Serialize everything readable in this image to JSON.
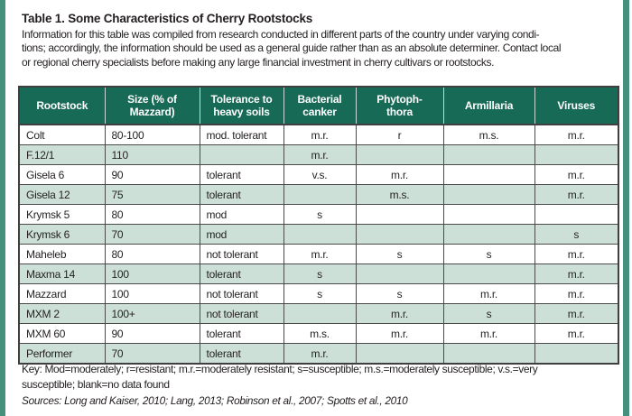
{
  "frame": {
    "border_color": "#45917e"
  },
  "title": "Table 1. Some Characteristics of Cherry Rootstocks",
  "intro": {
    "lines": [
      "Information for this table was compiled from research conducted in different parts of the country under varying condi-",
      "tions; accordingly, the information should be used as a general guide rather than as an absolute determiner. Contact local",
      "or regional cherry specialists before making any large financial investment in cherry cultivars or rootstocks."
    ]
  },
  "table": {
    "header_bg": "#166a56",
    "alt_row_bg": "#cde0d8",
    "headers": [
      [
        "Rootstock"
      ],
      [
        "Size (% of",
        "Mazzard)"
      ],
      [
        "Tolerance to",
        "heavy soils"
      ],
      [
        "Bacterial",
        "canker"
      ],
      [
        "Phytoph-",
        "thora"
      ],
      [
        "Armillaria"
      ],
      [
        "Viruses"
      ]
    ],
    "rows": [
      [
        "Colt",
        "80-100",
        "mod. tolerant",
        "m.r.",
        "r",
        "m.s.",
        "m.r."
      ],
      [
        "F.12/1",
        "110",
        "",
        "m.r.",
        "",
        "",
        ""
      ],
      [
        "Gisela 6",
        "90",
        "tolerant",
        "v.s.",
        "m.r.",
        "",
        "m.r."
      ],
      [
        "Gisela 12",
        "75",
        "tolerant",
        "",
        "m.s.",
        "",
        "m.r."
      ],
      [
        "Krymsk 5",
        "80",
        "mod",
        "s",
        "",
        "",
        ""
      ],
      [
        "Krymsk 6",
        "70",
        "mod",
        "",
        "",
        "",
        "s"
      ],
      [
        "Maheleb",
        "80",
        "not tolerant",
        "m.r.",
        "s",
        "s",
        "m.r."
      ],
      [
        "Maxma 14",
        "100",
        "tolerant",
        "s",
        "",
        "",
        "m.r."
      ],
      [
        "Mazzard",
        "100",
        "not tolerant",
        "s",
        "s",
        "m.r.",
        "m.r."
      ],
      [
        "MXM 2",
        "100+",
        "not tolerant",
        "",
        "m.r.",
        "s",
        "m.r."
      ],
      [
        "MXM 60",
        "90",
        "tolerant",
        "m.s.",
        "m.r.",
        "m.r.",
        "m.r."
      ],
      [
        "Performer",
        "70",
        "tolerant",
        "m.r.",
        "",
        "",
        ""
      ]
    ]
  },
  "footer": {
    "key_lines": [
      "Key: Mod=moderately; r=resistant; m.r.=moderately resistant; s=susceptible; m.s.=moderately susceptible; v.s.=very",
      "susceptible; blank=no data found"
    ],
    "sources": "Sources: Long and Kaiser, 2010; Lang, 2013; Robinson et al., 2007; Spotts et al., 2010"
  }
}
